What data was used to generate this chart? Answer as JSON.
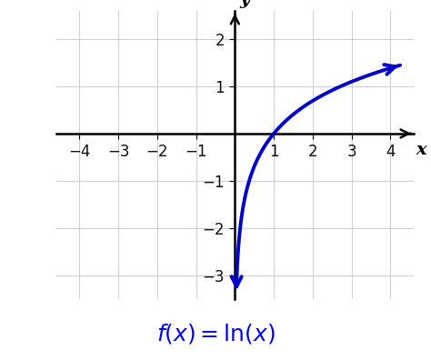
{
  "curve_color": "#0000CC",
  "axis_color": "#000000",
  "grid_color": "#d0d0d0",
  "background_color": "#ffffff",
  "xlim": [
    -4.6,
    4.6
  ],
  "ylim": [
    -3.5,
    2.6
  ],
  "x_ticks": [
    -4,
    -3,
    -2,
    -1,
    1,
    2,
    3,
    4
  ],
  "y_ticks": [
    -3,
    -2,
    -1,
    1,
    2
  ],
  "x_start": 0.043,
  "x_end": 4.25,
  "linewidth": 2.8,
  "tick_fontsize": 12,
  "label_fontsize": 14,
  "formula_fontsize": 18,
  "formula_color": "#0000FF"
}
